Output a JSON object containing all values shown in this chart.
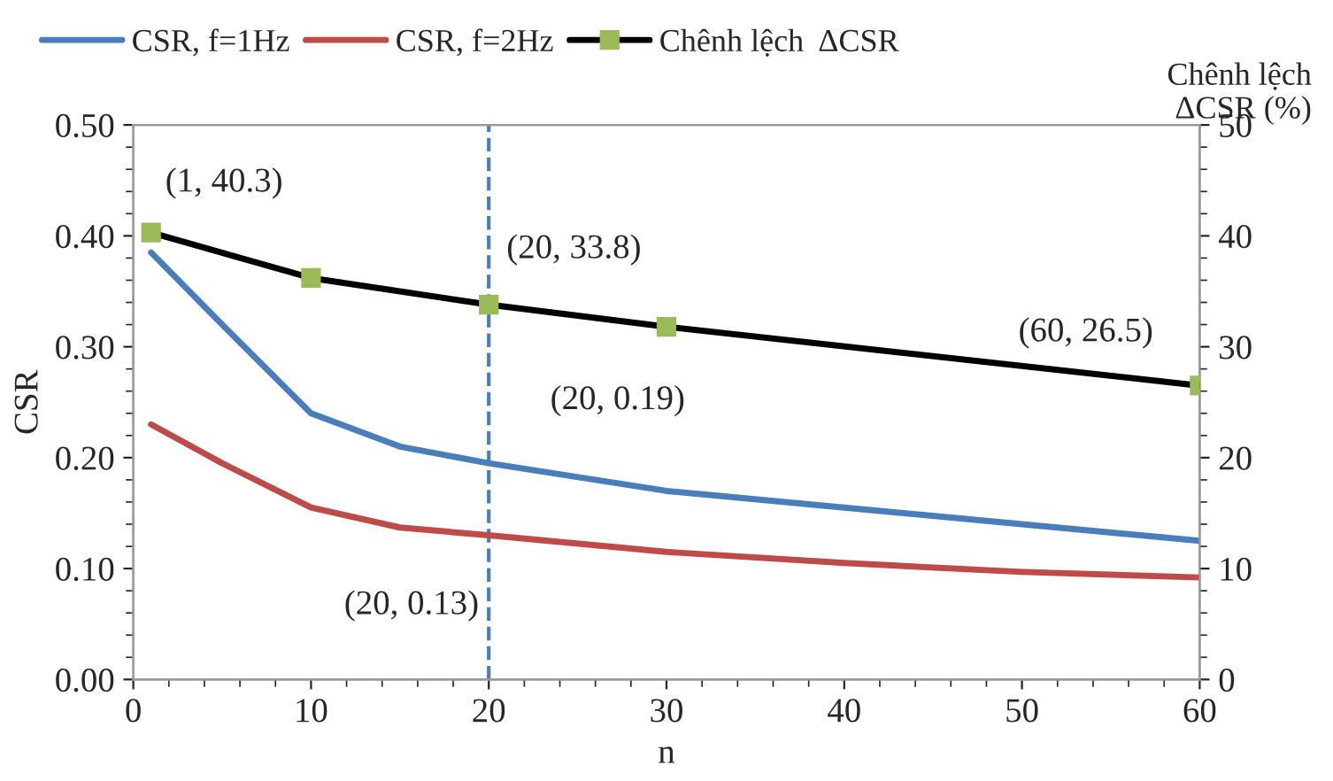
{
  "chart_data": {
    "type": "line",
    "xlabel": "n",
    "ylabel": "CSR",
    "y2label": "Chênh lệch\nΔCSR (%)",
    "xlim": [
      0,
      60
    ],
    "xticks": [
      0,
      10,
      20,
      30,
      40,
      50,
      60
    ],
    "ylim": [
      0,
      0.5
    ],
    "yticks": [
      {
        "value": 0,
        "label": "0.00"
      },
      {
        "value": 0.1,
        "label": "0.10"
      },
      {
        "value": 0.2,
        "label": "0.20"
      },
      {
        "value": 0.3,
        "label": "0.30"
      },
      {
        "value": 0.4,
        "label": "0.40"
      },
      {
        "value": 0.5,
        "label": "0.50"
      }
    ],
    "y2lim": [
      0,
      50
    ],
    "y2ticks": [
      0,
      10,
      20,
      30,
      40,
      50
    ],
    "grid": false,
    "legend": "top",
    "series": [
      {
        "name": "CSR, f=1Hz",
        "color": "#4a7ebb",
        "marker": "none",
        "x": [
          1,
          5,
          10,
          15,
          20,
          30,
          40,
          50,
          60
        ],
        "values": [
          0.385,
          0.32,
          0.24,
          0.21,
          0.195,
          0.17,
          0.155,
          0.14,
          0.125
        ]
      },
      {
        "name": "CSR, f=2Hz",
        "color": "#be4b48",
        "marker": "none",
        "x": [
          1,
          5,
          10,
          15,
          20,
          30,
          40,
          50,
          60
        ],
        "values": [
          0.23,
          0.195,
          0.155,
          0.137,
          0.13,
          0.115,
          0.105,
          0.097,
          0.092
        ]
      },
      {
        "name": "Chênh lệch  ΔCSR",
        "color": "#000000",
        "marker": "square",
        "axis": "y2",
        "x": [
          1,
          10,
          20,
          30,
          60
        ],
        "values": [
          40.3,
          36.2,
          33.8,
          31.8,
          26.5
        ]
      }
    ],
    "ref_lines": [
      {
        "axis": "x",
        "value": 20,
        "color": "#4a7ebb",
        "line_style": "dashed"
      }
    ],
    "annotations": [
      "(1, 40.3)",
      "(20, 33.8)",
      "(60, 26.5)",
      {
        "text": "(20, 0.19)",
        "x": 20,
        "y": 0.195
      },
      {
        "text": "(20, 0.13)",
        "x": 20,
        "y": 0.13
      }
    ]
  }
}
